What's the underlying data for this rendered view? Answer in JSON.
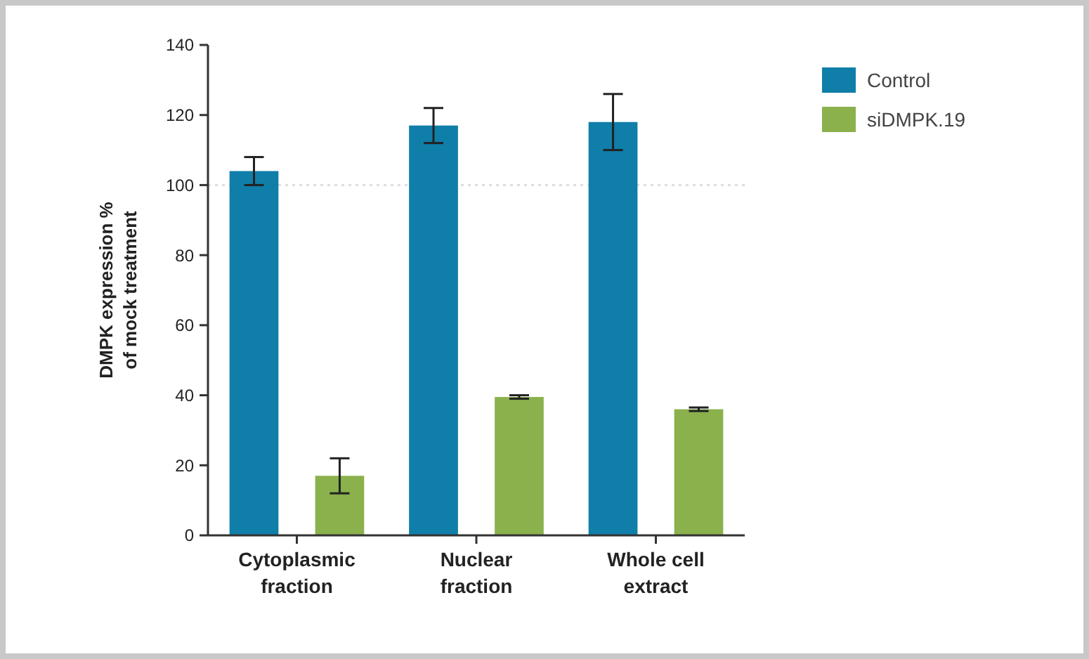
{
  "chart_data": {
    "type": "bar",
    "ylabel": "DMPK expression %\nof mock treatment",
    "categories": [
      "Cytoplasmic\nfraction",
      "Nuclear\nfraction",
      "Whole cell\nextract"
    ],
    "series": [
      {
        "name": "Control",
        "color": "#0f7ea8",
        "values": [
          104,
          117,
          118
        ],
        "errors": [
          4,
          5,
          8
        ]
      },
      {
        "name": "siDMPK.19",
        "color": "#8ab14c",
        "values": [
          17,
          39.5,
          36
        ],
        "errors": [
          5,
          0.5,
          0.5
        ]
      }
    ],
    "ylim": [
      0,
      140
    ],
    "yticks": [
      0,
      20,
      40,
      60,
      80,
      100,
      120,
      140
    ],
    "ref_lines": [
      {
        "axis": "y",
        "value": 100,
        "color": "#dddddd",
        "line_style": "dotted"
      }
    ],
    "legend": "right",
    "grid": false
  }
}
